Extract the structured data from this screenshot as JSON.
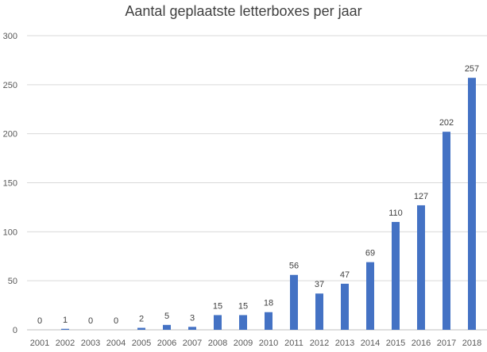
{
  "chart_data": {
    "type": "bar",
    "title": "Aantal geplaatste letterboxes per jaar",
    "xlabel": "",
    "ylabel": "",
    "categories": [
      "2001",
      "2002",
      "2003",
      "2004",
      "2005",
      "2006",
      "2007",
      "2008",
      "2009",
      "2010",
      "2011",
      "2012",
      "2013",
      "2014",
      "2015",
      "2016",
      "2017",
      "2018"
    ],
    "values": [
      0,
      1,
      0,
      0,
      2,
      5,
      3,
      15,
      15,
      18,
      56,
      37,
      47,
      69,
      110,
      127,
      202,
      257
    ],
    "ylim": [
      0,
      300
    ],
    "yticks": [
      0,
      50,
      100,
      150,
      200,
      250,
      300
    ],
    "grid": true,
    "legend": "none",
    "bar_color": "#4472c4",
    "data_labels": true
  }
}
